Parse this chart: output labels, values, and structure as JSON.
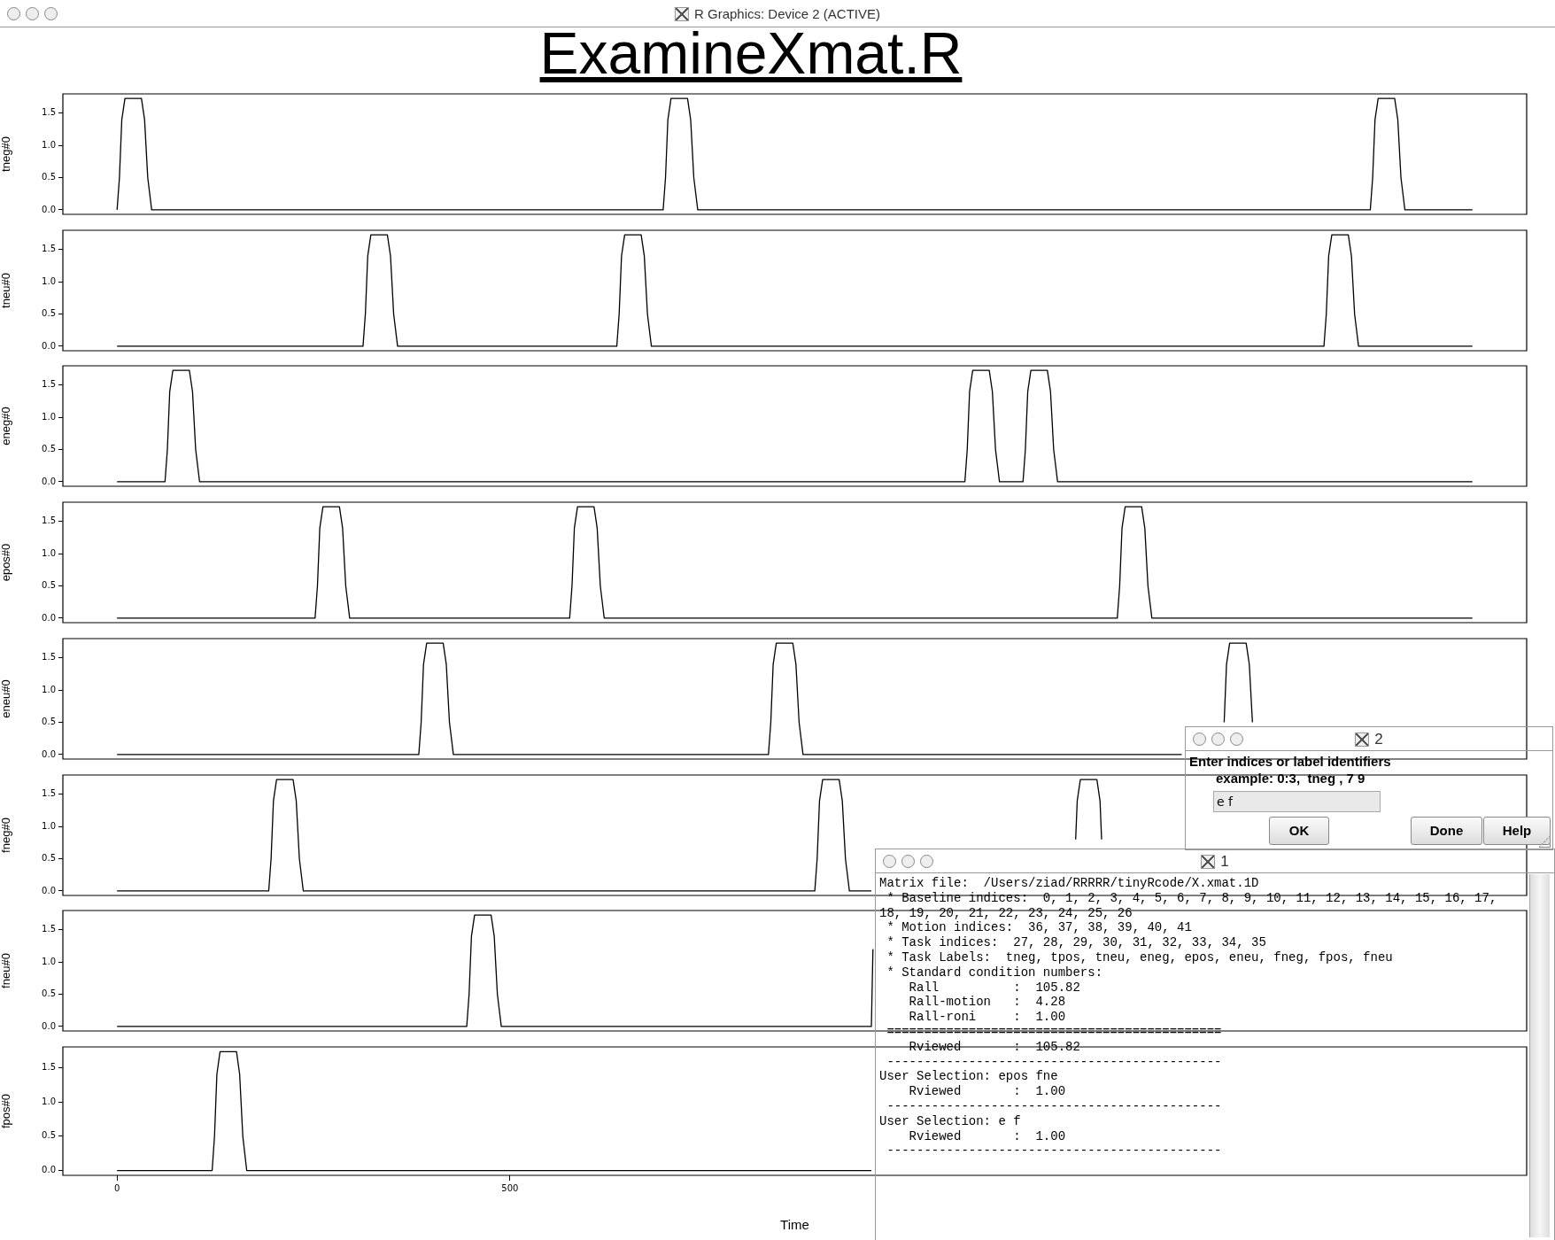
{
  "chart_data": [
    {
      "type": "line",
      "title": "ExamineXmat.R",
      "ylabel": "tneg#0",
      "color": "#000000",
      "marker": "none",
      "line_style": "solid",
      "grid": false,
      "legend": false,
      "tick_labels": "y",
      "xlim": [
        -69,
        1794
      ],
      "ylim": [
        -0.07,
        1.8
      ],
      "yticks": [
        {
          "value": 0,
          "label": "0.0"
        },
        {
          "value": 0.5,
          "label": "0.5"
        },
        {
          "value": 1,
          "label": "1.0"
        },
        {
          "value": 1.5,
          "label": "1.5"
        }
      ],
      "x": [
        0,
        3,
        6,
        10,
        31,
        35,
        39,
        44,
        695,
        698,
        701,
        705,
        726,
        730,
        734,
        739,
        1595,
        1598,
        1601,
        1605,
        1626,
        1630,
        1634,
        1639,
        1725
      ],
      "values": [
        0,
        0.5,
        1.4,
        1.73,
        1.73,
        1.4,
        0.5,
        0,
        0,
        0.5,
        1.4,
        1.73,
        1.73,
        1.4,
        0.5,
        0,
        0,
        0.5,
        1.4,
        1.73,
        1.73,
        1.4,
        0.5,
        0,
        0
      ],
      "annotations": [
        "R Graphics: Device 2 (ACTIVE)",
        "2",
        "Enter indices or label identifiers",
        "example: 0:3,  tneg , 7 9",
        "e f",
        "OK",
        "Done",
        "Help",
        "1",
        "Matrix file:  /Users/ziad/RRRRR/tinyRcode/X.xmat.1D",
        " * Baseline indices:  0, 1, 2, 3, 4, 5, 6, 7, 8, 9, 10, 11, 12, 13, 14, 15, 16, 17, 18, 19, 20, 21, 22, 23, 24, 25, 26",
        " * Motion indices:  36, 37, 38, 39, 40, 41",
        " * Task indices:  27, 28, 29, 30, 31, 32, 33, 34, 35",
        " * Task Labels:  tneg, tpos, tneu, eneg, epos, eneu, fneg, fpos, fneu",
        " * Standard condition numbers:",
        "    Rall          :  105.82",
        "    Rall-motion   :  4.28",
        "    Rall-roni     :  1.00",
        " =============================================",
        "    Rviewed       :  105.82",
        " ---------------------------------------------",
        "User Selection: epos fne",
        "    Rviewed       :  1.00",
        " ---------------------------------------------",
        "User Selection: e f",
        "    Rviewed       :  1.00",
        " ---------------------------------------------"
      ]
    },
    {
      "type": "line",
      "ylabel": "tneu#0",
      "color": "#000000",
      "marker": "none",
      "line_style": "solid",
      "grid": false,
      "legend": false,
      "tick_labels": "y",
      "xlim": [
        -69,
        1794
      ],
      "ylim": [
        -0.07,
        1.8
      ],
      "yticks": [
        {
          "value": 0,
          "label": "0.0"
        },
        {
          "value": 0.5,
          "label": "0.5"
        },
        {
          "value": 1,
          "label": "1.0"
        },
        {
          "value": 1.5,
          "label": "1.5"
        }
      ],
      "x": [
        0,
        313,
        316,
        319,
        323,
        344,
        348,
        352,
        357,
        636,
        639,
        642,
        646,
        667,
        671,
        675,
        680,
        1536,
        1539,
        1542,
        1546,
        1567,
        1571,
        1575,
        1580,
        1725
      ],
      "values": [
        0,
        0,
        0.5,
        1.4,
        1.73,
        1.73,
        1.4,
        0.5,
        0,
        0,
        0.5,
        1.4,
        1.73,
        1.73,
        1.4,
        0.5,
        0,
        0,
        0.5,
        1.4,
        1.73,
        1.73,
        1.4,
        0.5,
        0,
        0
      ]
    },
    {
      "type": "line",
      "ylabel": "eneg#0",
      "color": "#000000",
      "marker": "none",
      "line_style": "solid",
      "grid": false,
      "legend": false,
      "tick_labels": "y",
      "xlim": [
        -69,
        1794
      ],
      "ylim": [
        -0.07,
        1.8
      ],
      "yticks": [
        {
          "value": 0,
          "label": "0.0"
        },
        {
          "value": 0.5,
          "label": "0.5"
        },
        {
          "value": 1,
          "label": "1.0"
        },
        {
          "value": 1.5,
          "label": "1.5"
        }
      ],
      "x": [
        0,
        61,
        64,
        67,
        71,
        92,
        96,
        100,
        105,
        1079,
        1082,
        1085,
        1089,
        1110,
        1114,
        1118,
        1123,
        1153,
        1156,
        1159,
        1163,
        1184,
        1188,
        1192,
        1197,
        1725
      ],
      "values": [
        0,
        0,
        0.5,
        1.4,
        1.73,
        1.73,
        1.4,
        0.5,
        0,
        0,
        0.5,
        1.4,
        1.73,
        1.73,
        1.4,
        0.5,
        0,
        0,
        0.5,
        1.4,
        1.73,
        1.73,
        1.4,
        0.5,
        0,
        0
      ]
    },
    {
      "type": "line",
      "ylabel": "epos#0",
      "color": "#000000",
      "marker": "none",
      "line_style": "solid",
      "grid": false,
      "legend": false,
      "tick_labels": "y",
      "xlim": [
        -69,
        1794
      ],
      "ylim": [
        -0.07,
        1.8
      ],
      "yticks": [
        {
          "value": 0,
          "label": "0.0"
        },
        {
          "value": 0.5,
          "label": "0.5"
        },
        {
          "value": 1,
          "label": "1.0"
        },
        {
          "value": 1.5,
          "label": "1.5"
        }
      ],
      "x": [
        0,
        252,
        255,
        258,
        262,
        283,
        287,
        291,
        296,
        576,
        579,
        582,
        586,
        607,
        611,
        615,
        620,
        1273,
        1276,
        1279,
        1283,
        1304,
        1308,
        1312,
        1317,
        1725
      ],
      "values": [
        0,
        0,
        0.5,
        1.4,
        1.73,
        1.73,
        1.4,
        0.5,
        0,
        0,
        0.5,
        1.4,
        1.73,
        1.73,
        1.4,
        0.5,
        0,
        0,
        0.5,
        1.4,
        1.73,
        1.73,
        1.4,
        0.5,
        0,
        0
      ]
    },
    {
      "type": "line",
      "ylabel": "eneu#0",
      "color": "#000000",
      "marker": "none",
      "line_style": "solid",
      "grid": false,
      "legend": false,
      "tick_labels": "y",
      "xlim": [
        -69,
        1794
      ],
      "ylim": [
        -0.07,
        1.8
      ],
      "yticks": [
        {
          "value": 0,
          "label": "0.0"
        },
        {
          "value": 0.5,
          "label": "0.5"
        },
        {
          "value": 1,
          "label": "1.0"
        },
        {
          "value": 1.5,
          "label": "1.5"
        }
      ],
      "x": [
        0,
        384,
        387,
        390,
        394,
        415,
        419,
        423,
        428,
        829,
        832,
        835,
        839,
        860,
        864,
        868,
        873,
        1355,
        1380,
        1409,
        1412,
        1416,
        1437,
        1441,
        1445
      ],
      "values": [
        0,
        0,
        0.5,
        1.4,
        1.73,
        1.73,
        1.4,
        0.5,
        0,
        0,
        0.5,
        1.4,
        1.73,
        1.73,
        1.4,
        0.5,
        0,
        0,
        null,
        0.5,
        1.4,
        1.73,
        1.73,
        1.4,
        0.5
      ]
    },
    {
      "type": "line",
      "ylabel": "fneg#0",
      "color": "#000000",
      "marker": "none",
      "line_style": "solid",
      "grid": false,
      "legend": false,
      "tick_labels": "y",
      "xlim": [
        -69,
        1794
      ],
      "ylim": [
        -0.07,
        1.8
      ],
      "yticks": [
        {
          "value": 0,
          "label": "0.0"
        },
        {
          "value": 0.5,
          "label": "0.5"
        },
        {
          "value": 1,
          "label": "1.0"
        },
        {
          "value": 1.5,
          "label": "1.5"
        }
      ],
      "x": [
        0,
        193,
        196,
        199,
        203,
        224,
        228,
        232,
        237,
        888,
        891,
        894,
        898,
        919,
        923,
        927,
        932,
        960,
        1100,
        1220,
        1222,
        1226,
        1247,
        1251,
        1253
      ],
      "values": [
        0,
        0,
        0.5,
        1.4,
        1.73,
        1.73,
        1.4,
        0.5,
        0,
        0,
        0.5,
        1.4,
        1.73,
        1.73,
        1.4,
        0.5,
        0,
        0,
        null,
        0.8,
        1.4,
        1.73,
        1.73,
        1.4,
        0.8
      ]
    },
    {
      "type": "line",
      "ylabel": "fneu#0",
      "color": "#000000",
      "marker": "none",
      "line_style": "solid",
      "grid": false,
      "legend": false,
      "tick_labels": "y",
      "xlim": [
        -69,
        1794
      ],
      "ylim": [
        -0.07,
        1.8
      ],
      "yticks": [
        {
          "value": 0,
          "label": "0.0"
        },
        {
          "value": 0.5,
          "label": "0.5"
        },
        {
          "value": 1,
          "label": "1.0"
        },
        {
          "value": 1.5,
          "label": "1.5"
        }
      ],
      "x": [
        0,
        445,
        448,
        451,
        455,
        476,
        480,
        484,
        489,
        960,
        962
      ],
      "values": [
        0,
        0,
        0.5,
        1.4,
        1.73,
        1.73,
        1.4,
        0.5,
        0,
        0,
        1.2
      ]
    },
    {
      "type": "line",
      "ylabel": "fpos#0",
      "xlabel": "Time",
      "color": "#000000",
      "marker": "none",
      "line_style": "solid",
      "grid": false,
      "legend": false,
      "xlim": [
        -69,
        1794
      ],
      "xticks": [
        0,
        500
      ],
      "ylim": [
        -0.07,
        1.8
      ],
      "yticks": [
        {
          "value": 0,
          "label": "0.0"
        },
        {
          "value": 0.5,
          "label": "0.5"
        },
        {
          "value": 1,
          "label": "1.0"
        },
        {
          "value": 1.5,
          "label": "1.5"
        }
      ],
      "x": [
        0,
        121,
        124,
        127,
        131,
        152,
        156,
        160,
        165,
        960
      ],
      "values": [
        0,
        0,
        0.5,
        1.4,
        1.73,
        1.73,
        1.4,
        0.5,
        0,
        0
      ]
    }
  ]
}
